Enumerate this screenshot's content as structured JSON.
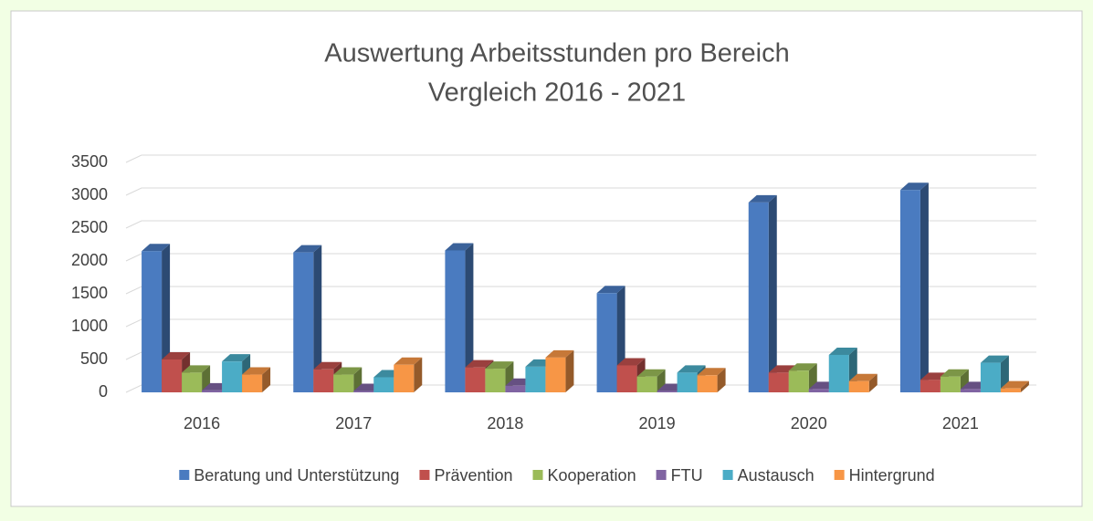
{
  "chart_data": {
    "type": "bar",
    "title": [
      "Auswertung Arbeitsstunden pro Bereich",
      "Vergleich 2016 - 2021"
    ],
    "categories": [
      "2016",
      "2017",
      "2018",
      "2019",
      "2020",
      "2021"
    ],
    "series": [
      {
        "name": "Beratung und Unterstützung",
        "color": "#4a7bc0",
        "values": [
          2150,
          2130,
          2160,
          1510,
          2890,
          3080
        ]
      },
      {
        "name": "Prävention",
        "color": "#c0504d",
        "values": [
          500,
          350,
          380,
          410,
          300,
          190
        ]
      },
      {
        "name": "Kooperation",
        "color": "#9bbb59",
        "values": [
          300,
          270,
          360,
          240,
          330,
          240
        ]
      },
      {
        "name": "FTU",
        "color": "#8064a2",
        "values": [
          30,
          20,
          100,
          20,
          50,
          50
        ]
      },
      {
        "name": "Austausch",
        "color": "#4bacc6",
        "values": [
          470,
          230,
          390,
          300,
          570,
          450
        ]
      },
      {
        "name": "Hintergrund",
        "color": "#f79646",
        "values": [
          270,
          420,
          530,
          260,
          170,
          60
        ]
      }
    ],
    "ylim": [
      0,
      3500
    ],
    "yticks": [
      0,
      500,
      1000,
      1500,
      2000,
      2500,
      3000,
      3500
    ],
    "grid": true,
    "legend": "bottom"
  }
}
